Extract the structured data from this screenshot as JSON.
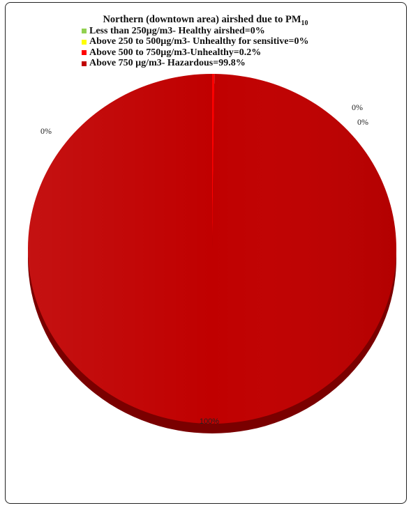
{
  "chart_data": {
    "type": "pie",
    "title": "Northern (downtown area) airshed due to PM",
    "title_subscript": "10",
    "slices": [
      {
        "label": "Less than 250µg/m3- Healthy airshed=0%",
        "value": 0,
        "color": "#92d050",
        "data_label": "0%"
      },
      {
        "label": "Above 250 to 500µg/m3- Unhealthy for sensitive=0%",
        "value": 0,
        "color": "#ffff00",
        "data_label": "0%"
      },
      {
        "label": "Above 500 to 750µg/m3-Unhealthy=0.2%",
        "value": 0.2,
        "color": "#ff0000",
        "data_label": "0%"
      },
      {
        "label": "Above 750 µg/m3- Hazardous=99.8%",
        "value": 99.8,
        "color": "#c00000",
        "data_label": "100%"
      }
    ],
    "legend_position": "top",
    "style": "3d"
  }
}
